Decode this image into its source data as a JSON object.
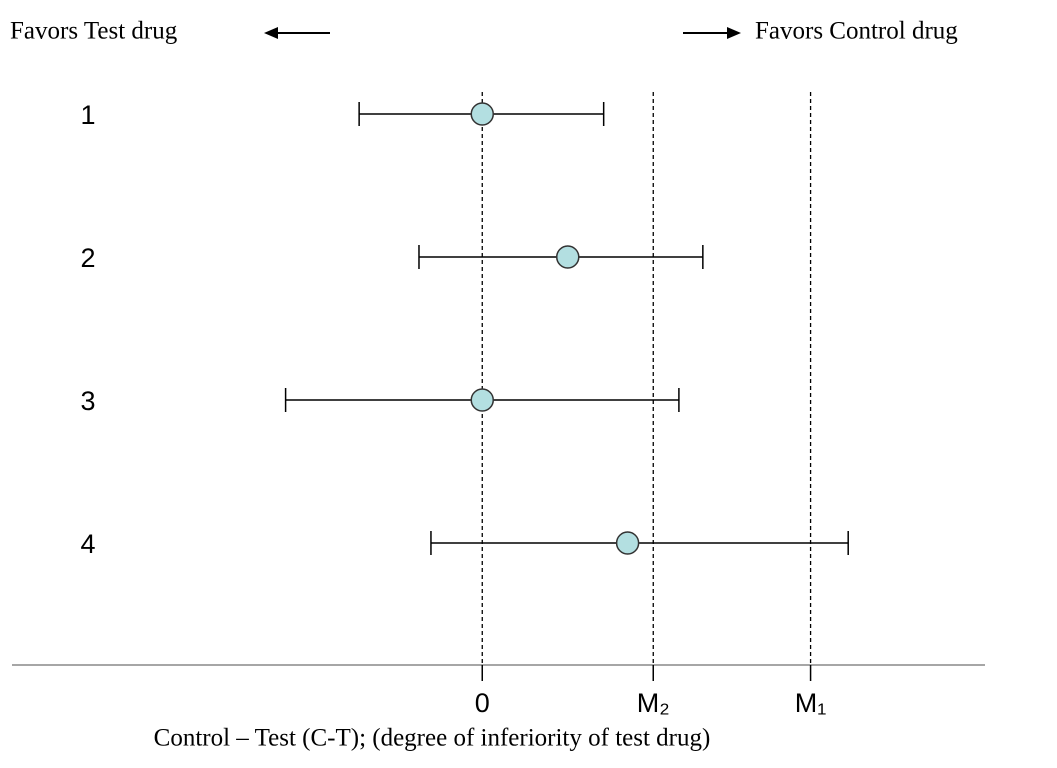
{
  "chart_data": {
    "type": "errorbar",
    "annotations": [
      "Favors Test drug",
      "Favors Control drug"
    ],
    "xlabel": "Control – Test (C-T); (degree of inferiority of test drug)",
    "categories": [
      "1",
      "2",
      "3",
      "4"
    ],
    "values": [
      0,
      0.5,
      0,
      0.85
    ],
    "lower": [
      -0.72,
      -0.37,
      -1.15,
      -0.3
    ],
    "upper": [
      0.71,
      1.29,
      1.15,
      2.14
    ],
    "color": "#b3dfe1",
    "xlim": [
      -2.75,
      2.94
    ],
    "xticks": [
      0,
      {
        "value": 1,
        "label": "M₂"
      },
      {
        "value": 1.92,
        "label": "M₁"
      }
    ],
    "grid": true
  }
}
